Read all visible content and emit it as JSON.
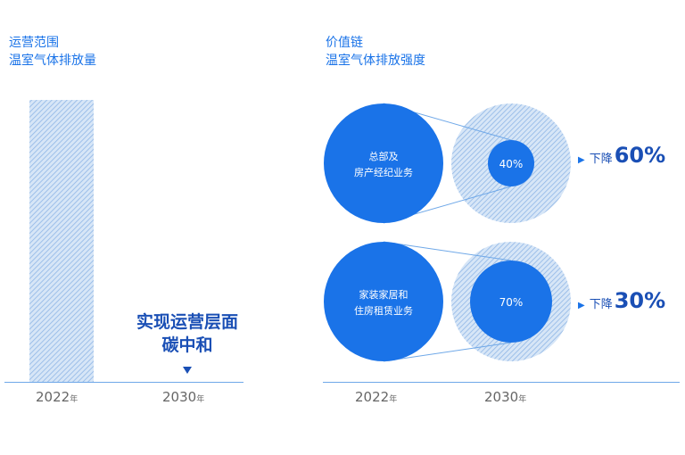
{
  "left_title": [
    "运营范围",
    "温室气体排放量"
  ],
  "right_title": [
    "价值链",
    "温室气体排放强度"
  ],
  "left_note": [
    "实现运营层面",
    "碳中和"
  ],
  "year_unit": "年",
  "chart_data": [
    {
      "type": "bar",
      "categories": [
        "2022",
        "2030"
      ],
      "values": [
        100,
        0
      ],
      "annotation": "实现运营层面 碳中和"
    },
    {
      "type": "bubble",
      "categories": [
        "2022",
        "2030"
      ],
      "series": [
        {
          "name": "总部及房产经纪业务",
          "values": [
            100,
            40
          ],
          "value_label": "40%",
          "change_label": "下降",
          "change": "60%"
        },
        {
          "name": "家装家居和住房租赁业务",
          "values": [
            100,
            70
          ],
          "value_label": "70%",
          "change_label": "下降",
          "change": "30%"
        }
      ]
    }
  ],
  "colors": {
    "primary": "#1a73e8",
    "hatch": "#b8d2f0",
    "dark_text": "#1a4fb5"
  }
}
